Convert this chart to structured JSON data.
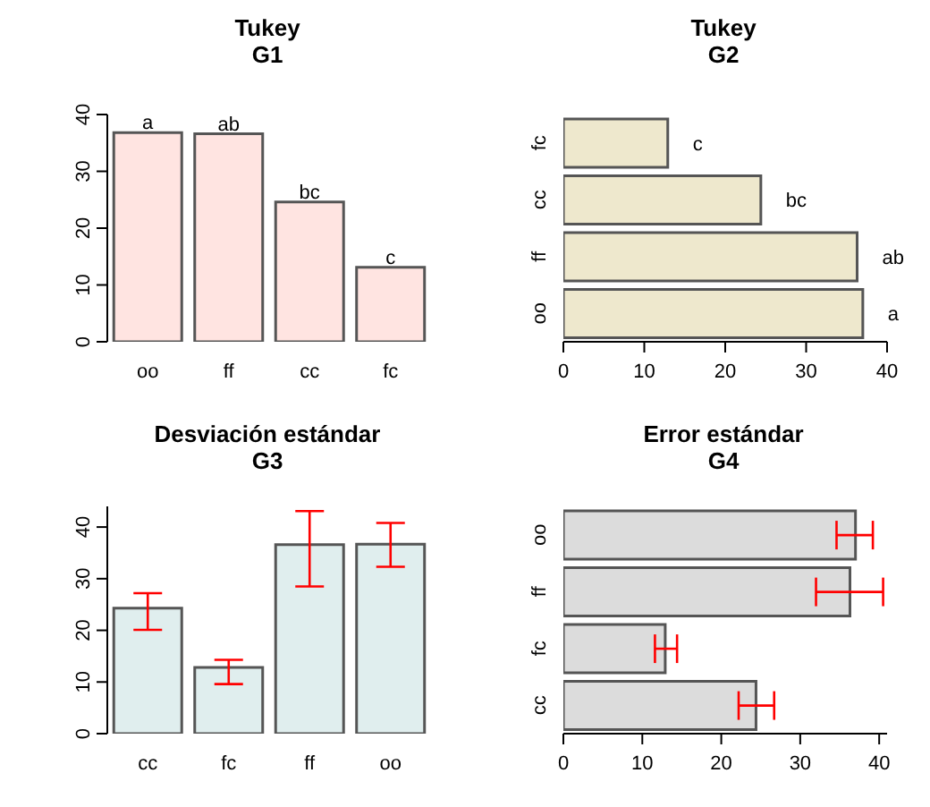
{
  "chart_data": [
    {
      "type": "bar",
      "title": "Tukey",
      "subtitle": "G1",
      "categories": [
        "oo",
        "ff",
        "cc",
        "fc"
      ],
      "values": [
        36.8,
        36.6,
        24.6,
        13.1
      ],
      "color": "#ffe4e1",
      "value_labels": [
        "a",
        "ab",
        "bc",
        "c"
      ],
      "ylim": [
        0,
        40
      ],
      "yticks": [
        0,
        10,
        20,
        30,
        40
      ]
    },
    {
      "type": "bar",
      "orientation": "horizontal",
      "title": "Tukey",
      "subtitle": "G2",
      "categories": [
        "fc",
        "cc",
        "ff",
        "oo"
      ],
      "values": [
        12.9,
        24.4,
        36.3,
        37.0
      ],
      "color": "#eee8cd",
      "value_labels": [
        "c",
        "bc",
        "ab",
        "a"
      ],
      "xlim": [
        0,
        40
      ],
      "xticks": [
        0,
        10,
        20,
        30,
        40
      ]
    },
    {
      "type": "bar",
      "title": "Desviación estándar",
      "subtitle": "G3",
      "categories": [
        "cc",
        "fc",
        "ff",
        "oo"
      ],
      "values": [
        24.3,
        12.8,
        36.6,
        36.7
      ],
      "errors": [
        [
          20.1,
          27.2
        ],
        [
          9.6,
          14.3
        ],
        [
          28.5,
          43.1
        ],
        [
          32.3,
          40.8
        ]
      ],
      "color": "#e0eeee",
      "ylim": [
        0,
        44
      ],
      "yticks": [
        0,
        10,
        20,
        30,
        40
      ]
    },
    {
      "type": "bar",
      "orientation": "horizontal",
      "title": "Error estándar",
      "subtitle": "G4",
      "categories": [
        "oo",
        "ff",
        "fc",
        "cc"
      ],
      "values": [
        37.0,
        36.3,
        12.9,
        24.4
      ],
      "errors": [
        [
          34.6,
          39.2
        ],
        [
          32.0,
          40.5
        ],
        [
          11.6,
          14.4
        ],
        [
          22.2,
          26.7
        ]
      ],
      "color": "#dcdcdc",
      "xlim": [
        0,
        41
      ],
      "xticks": [
        0,
        10,
        20,
        30,
        40
      ]
    }
  ]
}
